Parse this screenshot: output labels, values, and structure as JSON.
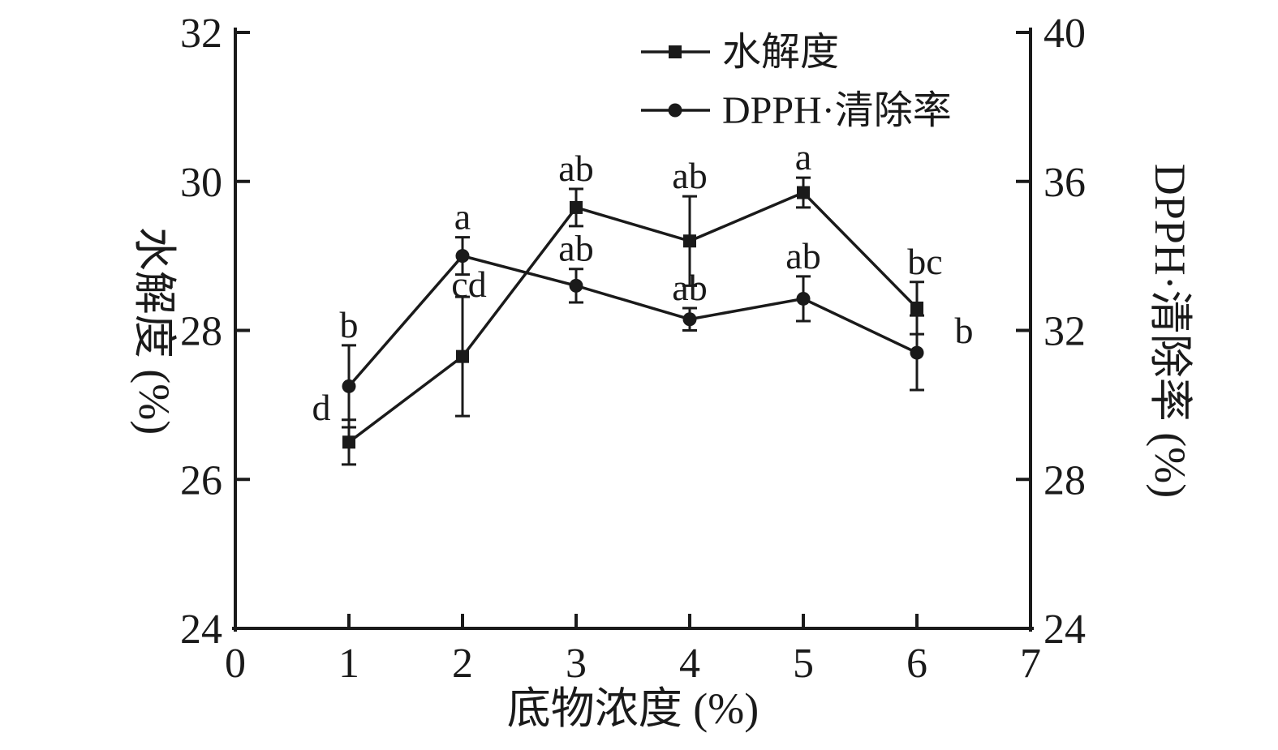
{
  "chart_data": {
    "type": "line",
    "title": "",
    "xlabel": "底物浓度 (%)",
    "xlim": [
      0,
      7
    ],
    "x_ticks": [
      0,
      1,
      2,
      3,
      4,
      5,
      6,
      7
    ],
    "x": [
      1,
      2,
      3,
      4,
      5,
      6
    ],
    "left_axis": {
      "label": "水解度 (%)",
      "min": 24,
      "max": 32,
      "ticks": [
        24,
        26,
        28,
        30,
        32
      ]
    },
    "right_axis": {
      "label": "DPPH·清除率 (%)",
      "min": 24,
      "max": 40,
      "ticks": [
        24,
        28,
        32,
        36,
        40
      ]
    },
    "grid": false,
    "legend_position": "top-center-inside",
    "series": [
      {
        "name": "水解度",
        "axis": "left",
        "marker": "square",
        "color": "#1a1a1a",
        "values": [
          26.5,
          27.65,
          29.65,
          29.2,
          29.85,
          28.3
        ],
        "errors": [
          0.3,
          0.8,
          0.25,
          0.6,
          0.2,
          0.35
        ],
        "point_labels": [
          "d",
          "cd",
          "ab",
          "ab",
          "a",
          "bc"
        ],
        "label_offsets": [
          [
            -34,
            10
          ],
          [
            8,
            10
          ],
          [
            0,
            0
          ],
          [
            0,
            0
          ],
          [
            0,
            0
          ],
          [
            10,
            0
          ]
        ]
      },
      {
        "name": "DPPH·清除率",
        "axis": "right",
        "marker": "circle",
        "color": "#1a1a1a",
        "values": [
          30.5,
          34.0,
          33.2,
          32.3,
          32.85,
          31.4
        ],
        "errors": [
          1.1,
          0.5,
          0.45,
          0.3,
          0.6,
          1.0
        ],
        "point_labels": [
          "b",
          "a",
          "ab",
          "ab",
          "ab",
          "b"
        ],
        "label_offsets": [
          [
            0,
            0
          ],
          [
            0,
            0
          ],
          [
            0,
            0
          ],
          [
            0,
            0
          ],
          [
            0,
            0
          ],
          [
            58,
            44
          ]
        ]
      }
    ],
    "legend": [
      {
        "label": "水解度",
        "marker": "square"
      },
      {
        "label": "DPPH·清除率",
        "marker": "circle"
      }
    ],
    "ink_color": "#1a1a1a",
    "background_color": "#ffffff"
  }
}
